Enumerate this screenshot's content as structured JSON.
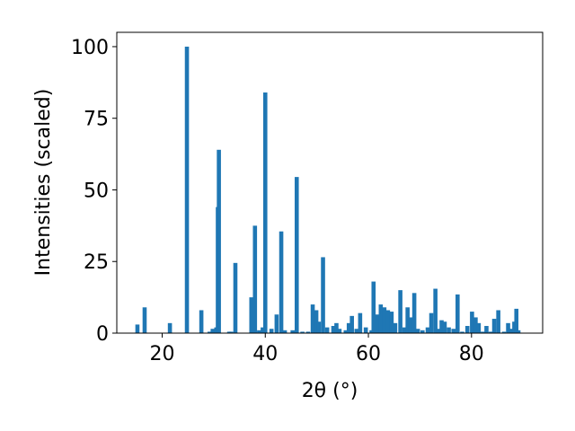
{
  "chart_data": {
    "type": "bar",
    "title": "",
    "xlabel": "2θ (°)",
    "ylabel": "Intensities (scaled)",
    "xlim": [
      11.2,
      93.8
    ],
    "ylim": [
      0,
      105
    ],
    "xticks": [
      20,
      40,
      60,
      80
    ],
    "yticks": [
      0,
      25,
      50,
      75,
      100
    ],
    "grid": false,
    "bar_color": "#1f77b4",
    "bar_width": 0.8,
    "x": [
      15.2,
      16.6,
      21.5,
      24.8,
      27.6,
      29.2,
      29.8,
      30.5,
      30.8,
      31.0,
      33.0,
      33.4,
      34.2,
      37.3,
      38.0,
      38.8,
      39.5,
      40.0,
      41.2,
      42.2,
      43.1,
      43.8,
      45.3,
      46.1,
      47.2,
      48.3,
      49.2,
      49.9,
      50.4,
      51.2,
      52.0,
      53.2,
      53.8,
      54.4,
      55.6,
      56.2,
      56.8,
      57.7,
      58.4,
      59.5,
      60.6,
      61.0,
      61.7,
      62.4,
      63.1,
      63.8,
      64.5,
      65.2,
      66.2,
      67.0,
      67.6,
      68.2,
      68.9,
      69.6,
      70.5,
      71.5,
      72.2,
      73.0,
      73.6,
      74.2,
      74.8,
      75.6,
      76.5,
      77.3,
      78.2,
      79.2,
      80.1,
      80.8,
      81.4,
      82.2,
      82.9,
      83.7,
      84.4,
      85.2,
      86.3,
      87.1,
      87.8,
      88.3,
      88.7,
      89.1
    ],
    "values": [
      3,
      9,
      3.5,
      100,
      8,
      0.5,
      1.5,
      2,
      44,
      64,
      0.5,
      0.5,
      24.5,
      12.5,
      37.5,
      1,
      2,
      84,
      1.5,
      6.5,
      35.5,
      1,
      1,
      54.5,
      0.5,
      0.5,
      10,
      8,
      4,
      26.5,
      2,
      2.5,
      3.5,
      1.5,
      1,
      3.5,
      6,
      1.5,
      7,
      2,
      1,
      18,
      6.5,
      10,
      9,
      8,
      7.5,
      3.5,
      15,
      2,
      9,
      5.5,
      14,
      1.5,
      1,
      2,
      7,
      15.5,
      1.5,
      4.5,
      4,
      2,
      1.5,
      13.5,
      0.5,
      2.5,
      7.5,
      5.5,
      3.5,
      0.5,
      2.5,
      0.5,
      5,
      8,
      0.5,
      3.5,
      1.5,
      4,
      8.5,
      1
    ]
  }
}
